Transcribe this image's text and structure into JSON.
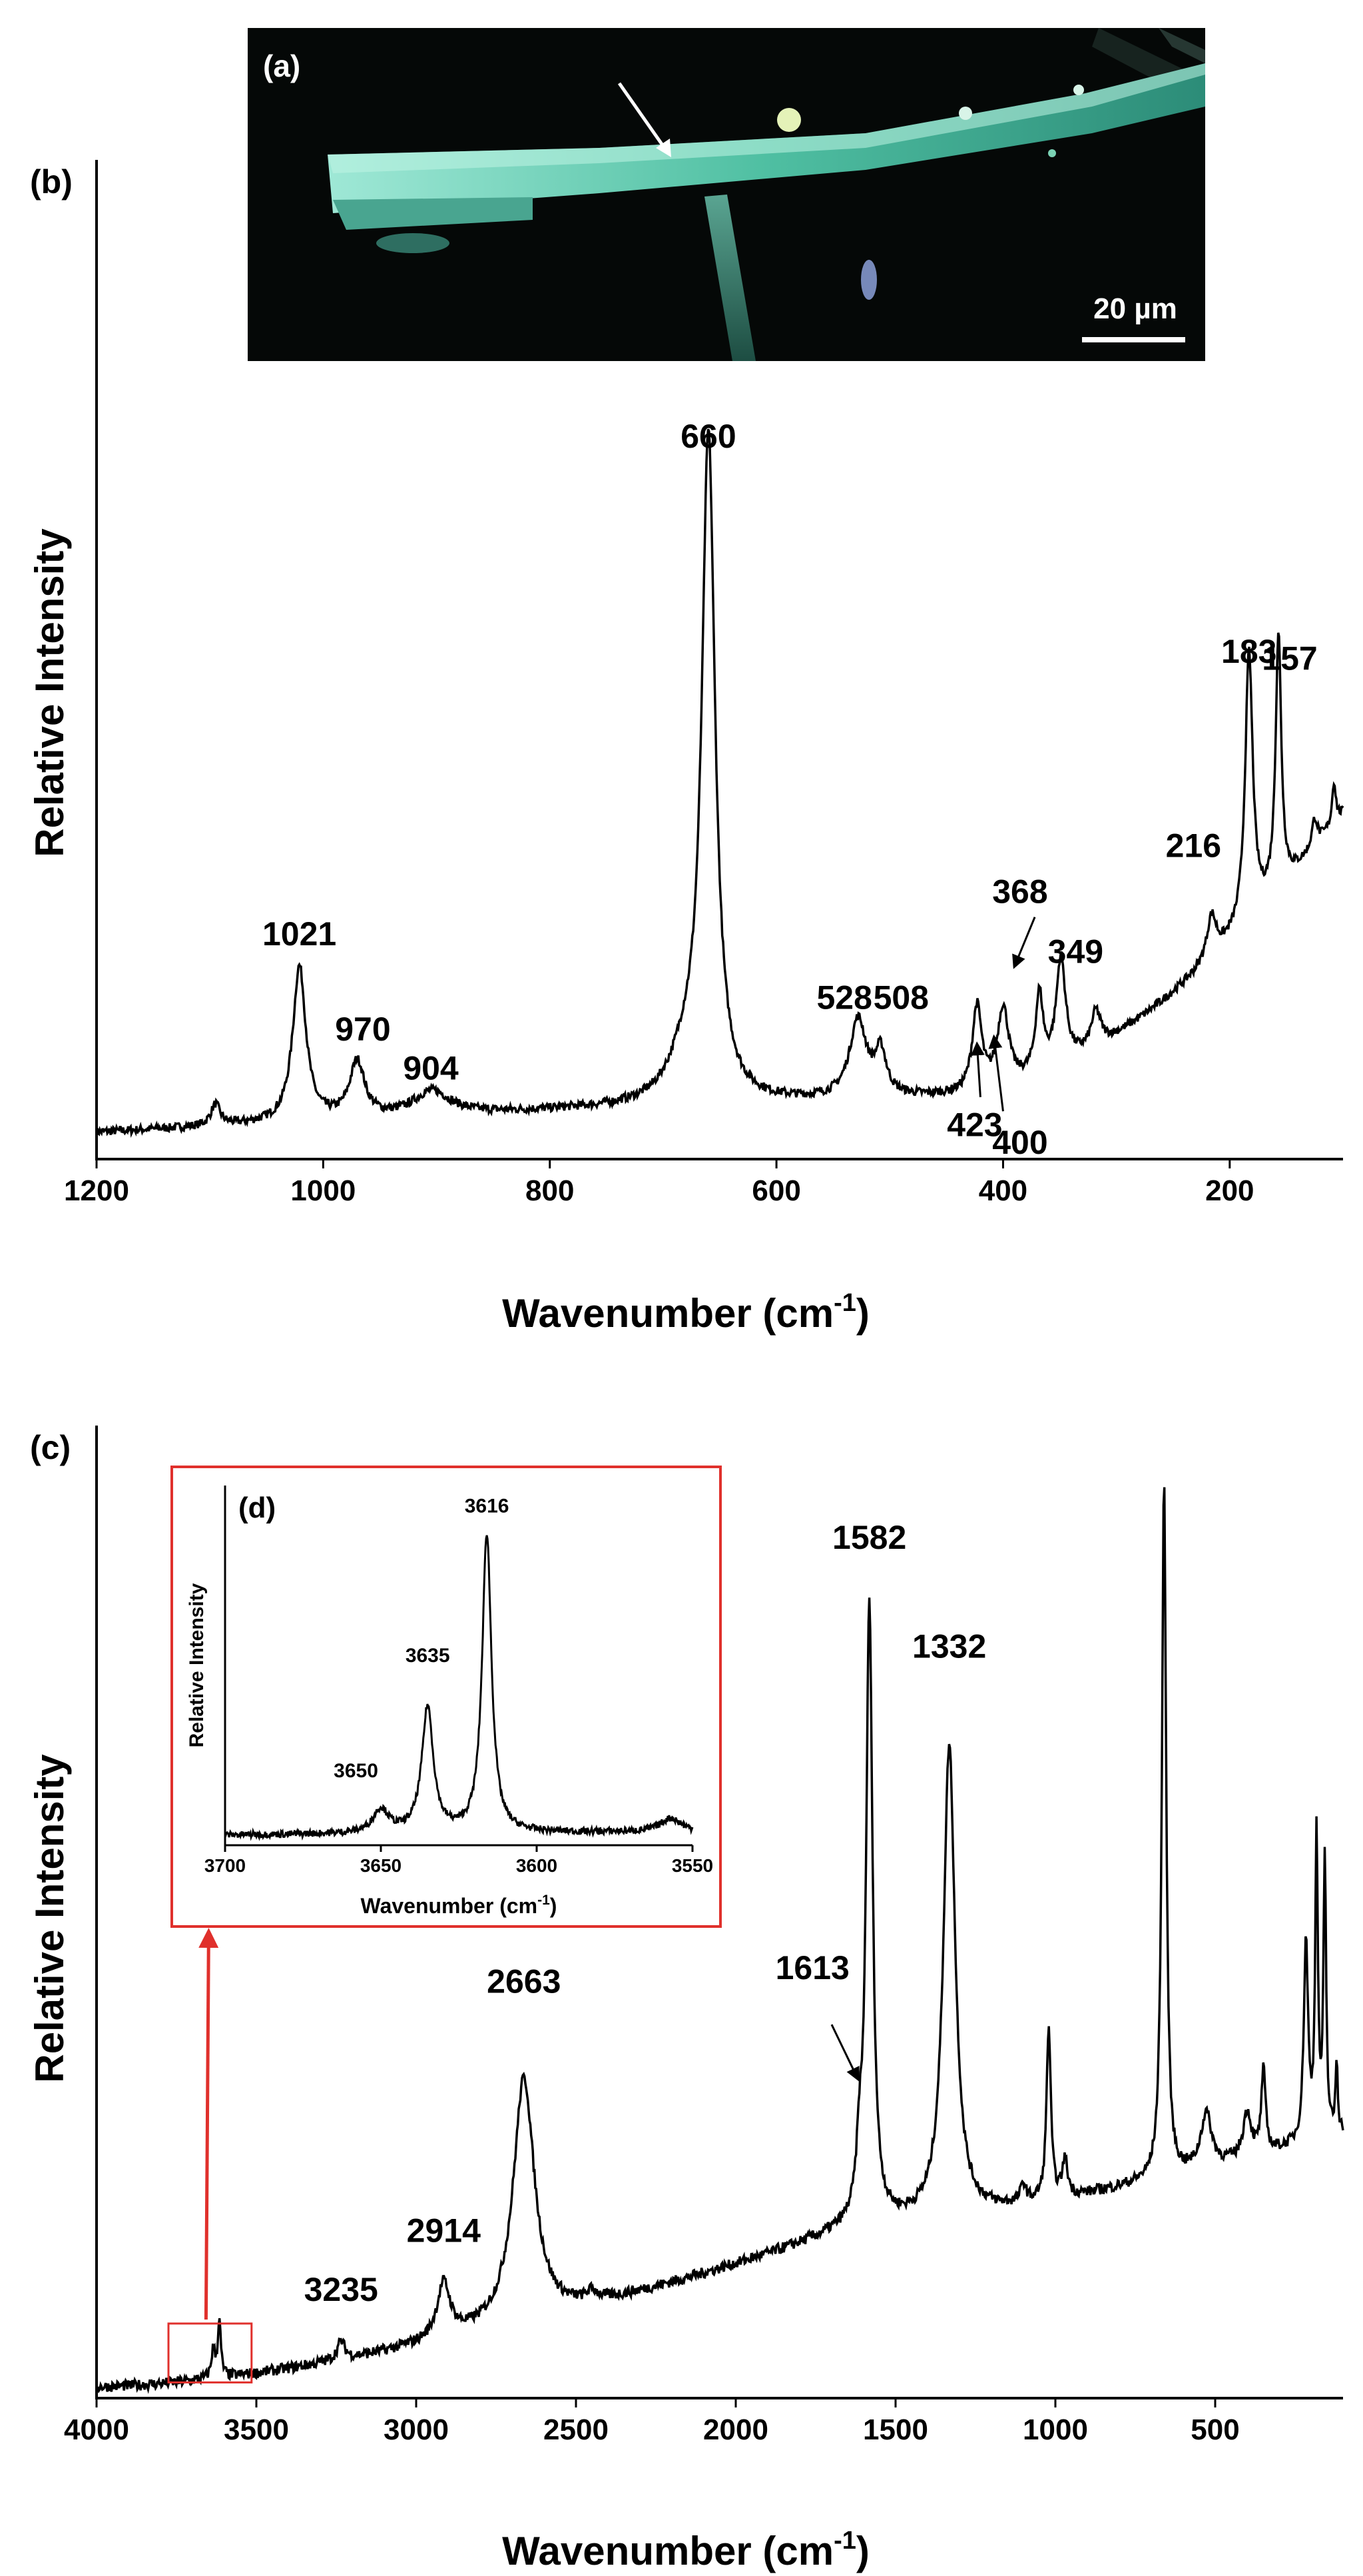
{
  "figure": {
    "panel_a_label": "(a)",
    "panel_b_label": "(b)",
    "panel_c_label": "(c)",
    "panel_d_label": "(d)",
    "scale_bar_text": "20 µm"
  },
  "colors": {
    "line": "#000000",
    "inset_box": "#e0302c",
    "micrograph_bg": "#050807",
    "fiber": "#6fe0c8"
  },
  "chart_data": [
    {
      "id": "b",
      "type": "line",
      "title": "",
      "xlabel_main": "Wavenumber (cm",
      "xlabel_sup": "-1",
      "xlabel_close": ")",
      "ylabel": "Relative Intensity",
      "xlim": [
        1200,
        100
      ],
      "ylim": [
        0,
        1.0
      ],
      "x_ticks": [
        1200,
        1000,
        800,
        600,
        400,
        200
      ],
      "x_tick_labels": [
        "1200",
        "1000",
        "800",
        "600",
        "400",
        "200"
      ],
      "peaks": [
        {
          "x": 1095,
          "h": 0.03,
          "w": 5
        },
        {
          "x": 1021,
          "h": 0.22,
          "w": 7
        },
        {
          "x": 970,
          "h": 0.08,
          "w": 8
        },
        {
          "x": 904,
          "h": 0.035,
          "w": 20
        },
        {
          "x": 660,
          "h": 0.93,
          "w": 7
        },
        {
          "x": 680,
          "h": 0.06,
          "w": 18
        },
        {
          "x": 528,
          "h": 0.11,
          "w": 9
        },
        {
          "x": 508,
          "h": 0.06,
          "w": 6
        },
        {
          "x": 423,
          "h": 0.12,
          "w": 5
        },
        {
          "x": 400,
          "h": 0.11,
          "w": 6
        },
        {
          "x": 368,
          "h": 0.11,
          "w": 4
        },
        {
          "x": 349,
          "h": 0.15,
          "w": 5
        },
        {
          "x": 318,
          "h": 0.05,
          "w": 5
        },
        {
          "x": 216,
          "h": 0.06,
          "w": 5
        },
        {
          "x": 183,
          "h": 0.38,
          "w": 4
        },
        {
          "x": 157,
          "h": 0.36,
          "w": 3
        },
        {
          "x": 125,
          "h": 0.04,
          "w": 3
        },
        {
          "x": 108,
          "h": 0.06,
          "w": 2
        }
      ],
      "annotations": [
        {
          "text": "1021",
          "x": 1021,
          "y": 0.265
        },
        {
          "text": "970",
          "x": 965,
          "y": 0.13
        },
        {
          "text": "904",
          "x": 905,
          "y": 0.075
        },
        {
          "text": "660",
          "x": 660,
          "y": 0.97
        },
        {
          "text": "528",
          "x": 540,
          "y": 0.175
        },
        {
          "text": "508",
          "x": 490,
          "y": 0.175
        },
        {
          "text": "423",
          "x": 425,
          "y": -0.005
        },
        {
          "text": "400",
          "x": 385,
          "y": -0.03
        },
        {
          "text": "368",
          "x": 385,
          "y": 0.325
        },
        {
          "text": "349",
          "x": 336,
          "y": 0.24
        },
        {
          "text": "216",
          "x": 232,
          "y": 0.39
        },
        {
          "text": "183",
          "x": 183,
          "y": 0.665
        },
        {
          "text": "157",
          "x": 147,
          "y": 0.655
        }
      ],
      "arrows": [
        {
          "from": [
            372,
            0.305
          ],
          "to": [
            390,
            0.235
          ]
        },
        {
          "from": [
            420,
            0.05
          ],
          "to": [
            423,
            0.125
          ]
        },
        {
          "from": [
            400,
            0.03
          ],
          "to": [
            408,
            0.135
          ]
        }
      ]
    },
    {
      "id": "c",
      "type": "line",
      "title": "",
      "xlabel_main": "Wavenumber (cm",
      "xlabel_sup": "-1",
      "xlabel_close": ")",
      "ylabel": "Relative Intensity",
      "xlim": [
        4000,
        100
      ],
      "ylim": [
        0,
        1.0
      ],
      "x_ticks": [
        4000,
        3500,
        3000,
        2500,
        2000,
        1500,
        1000,
        500
      ],
      "x_tick_labels": [
        "4000",
        "3500",
        "3000",
        "2500",
        "2000",
        "1500",
        "1000",
        "500"
      ],
      "peaks": [
        {
          "x": 3616,
          "h": 0.06,
          "w": 6
        },
        {
          "x": 3635,
          "h": 0.03,
          "w": 7
        },
        {
          "x": 3235,
          "h": 0.02,
          "w": 15
        },
        {
          "x": 2914,
          "h": 0.06,
          "w": 25
        },
        {
          "x": 2663,
          "h": 0.27,
          "w": 40
        },
        {
          "x": 2450,
          "h": 0.01,
          "w": 20
        },
        {
          "x": 1613,
          "h": 0.06,
          "w": 10
        },
        {
          "x": 1582,
          "h": 0.68,
          "w": 12
        },
        {
          "x": 1332,
          "h": 0.52,
          "w": 22
        },
        {
          "x": 1100,
          "h": 0.02,
          "w": 10
        },
        {
          "x": 1021,
          "h": 0.19,
          "w": 8
        },
        {
          "x": 970,
          "h": 0.04,
          "w": 10
        },
        {
          "x": 660,
          "h": 0.77,
          "w": 8
        },
        {
          "x": 528,
          "h": 0.06,
          "w": 20
        },
        {
          "x": 400,
          "h": 0.05,
          "w": 15
        },
        {
          "x": 349,
          "h": 0.09,
          "w": 8
        },
        {
          "x": 216,
          "h": 0.22,
          "w": 8
        },
        {
          "x": 183,
          "h": 0.33,
          "w": 5
        },
        {
          "x": 157,
          "h": 0.3,
          "w": 5
        },
        {
          "x": 120,
          "h": 0.08,
          "w": 4
        }
      ],
      "annotations": [
        {
          "text": "3235",
          "x": 3235,
          "y": 0.1
        },
        {
          "text": "2914",
          "x": 2914,
          "y": 0.165
        },
        {
          "text": "2663",
          "x": 2663,
          "y": 0.44
        },
        {
          "text": "1613",
          "x": 1760,
          "y": 0.455
        },
        {
          "text": "1582",
          "x": 1582,
          "y": 0.93
        },
        {
          "text": "1332",
          "x": 1332,
          "y": 0.81
        }
      ],
      "arrows": [
        {
          "from": [
            1700,
            0.405
          ],
          "to": [
            1618,
            0.345
          ]
        }
      ],
      "inset_box_range": {
        "x": [
          3775,
          3515
        ],
        "y": [
          0.01,
          0.075
        ]
      }
    },
    {
      "id": "d",
      "type": "line",
      "title": "",
      "xlabel_main": "Wavenumber (cm",
      "xlabel_sup": "-1",
      "xlabel_close": ")",
      "ylabel": "Relative Intensity",
      "xlim": [
        3700,
        3550
      ],
      "ylim": [
        0,
        1.0
      ],
      "x_ticks": [
        3700,
        3650,
        3600,
        3550
      ],
      "x_tick_labels": [
        "3700",
        "3650",
        "3600",
        "3550"
      ],
      "peaks": [
        {
          "x": 3650,
          "h": 0.07,
          "w": 3
        },
        {
          "x": 3635,
          "h": 0.37,
          "w": 2.2
        },
        {
          "x": 3616,
          "h": 0.88,
          "w": 1.8
        },
        {
          "x": 3557,
          "h": 0.04,
          "w": 4
        }
      ],
      "annotations": [
        {
          "text": "3650",
          "x": 3658,
          "y": 0.18
        },
        {
          "text": "3635",
          "x": 3635,
          "y": 0.52
        },
        {
          "text": "3616",
          "x": 3616,
          "y": 0.96
        }
      ],
      "arrows": []
    }
  ]
}
